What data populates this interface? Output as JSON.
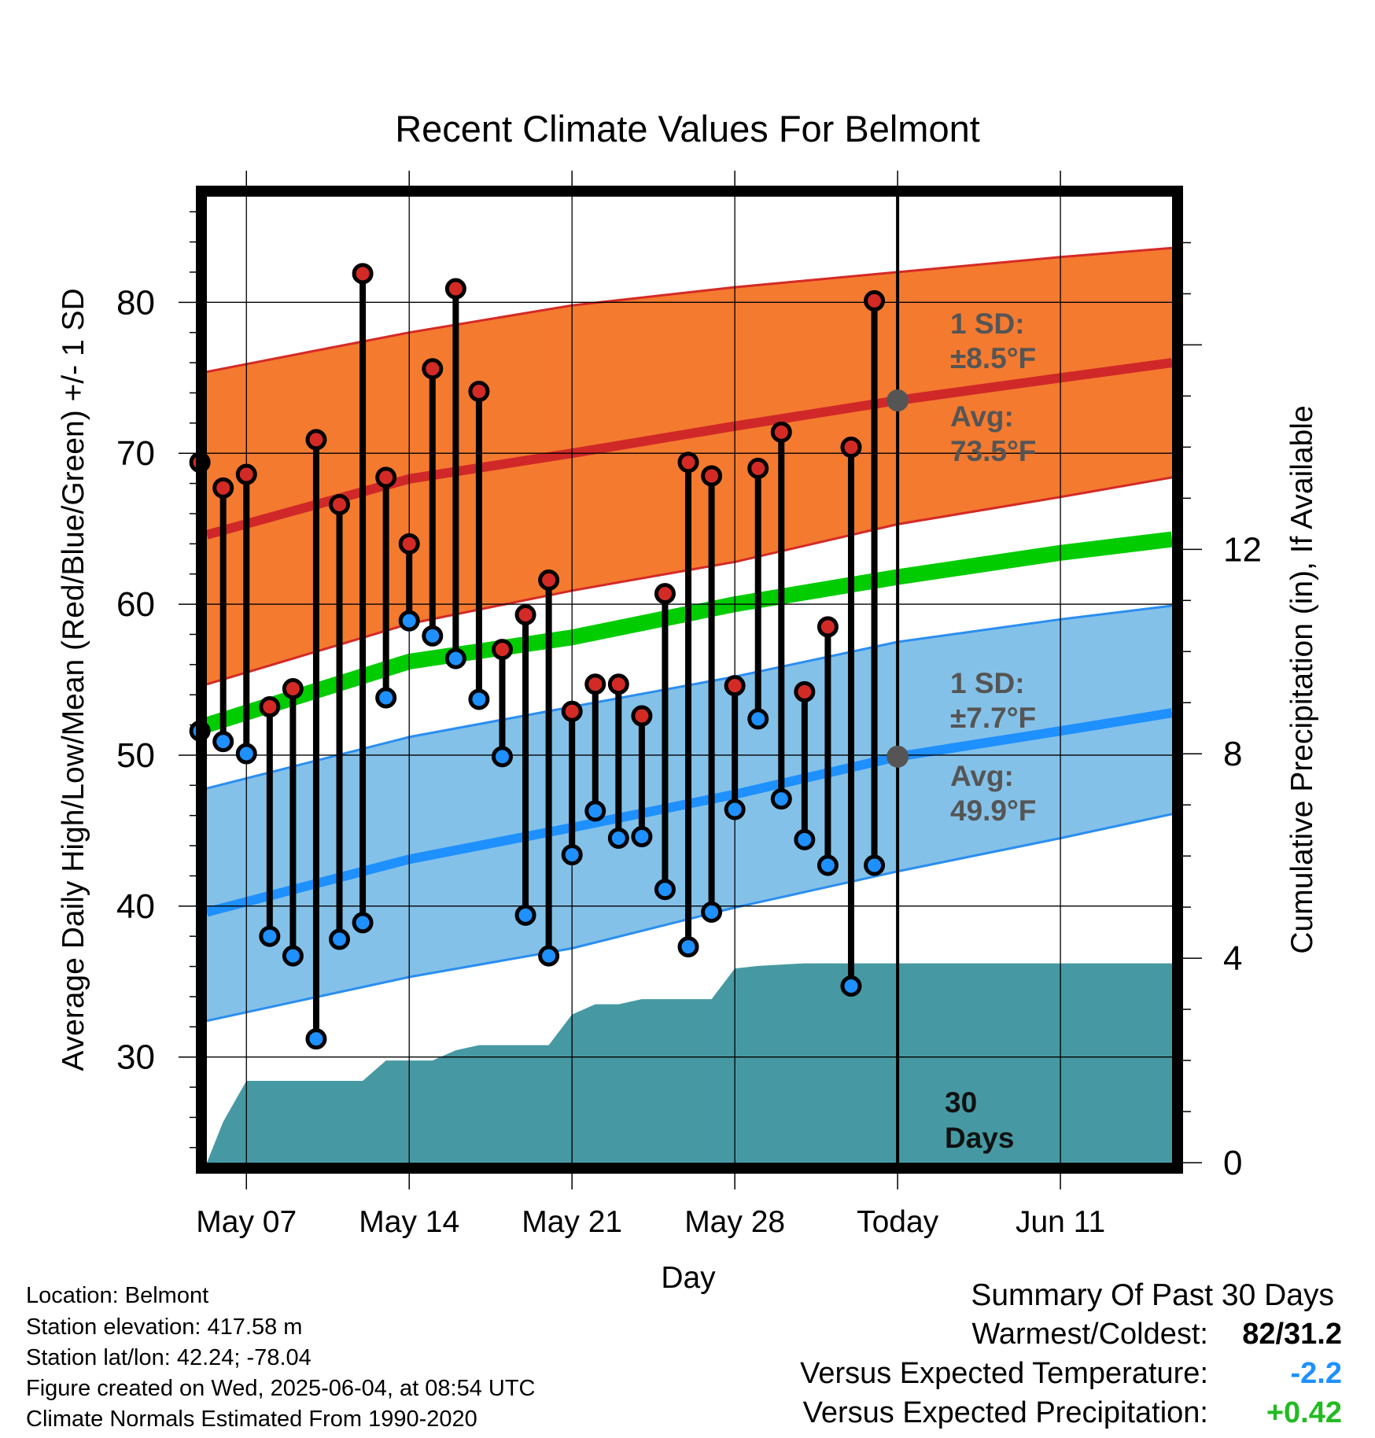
{
  "chart_data": {
    "type": "line",
    "title": "Recent Climate Values For Belmont",
    "xlabel": "Day",
    "ylabel": "Average Daily High/Low/Mean (Red/Blue/Green) +/- 1 SD",
    "y2label": "Cumulative Precipitation (in), If Available",
    "ylim": [
      23,
      87
    ],
    "y2lim": [
      0,
      18.9
    ],
    "yticks": [
      30,
      40,
      50,
      60,
      70,
      80
    ],
    "y2ticks": [
      0,
      4,
      8,
      12
    ],
    "xlim": [
      -1.7,
      39.8
    ],
    "xticks": [
      {
        "day": 0,
        "label": "May 07"
      },
      {
        "day": 7,
        "label": "May 14"
      },
      {
        "day": 14,
        "label": "May 21"
      },
      {
        "day": 21,
        "label": "May 28"
      },
      {
        "day": 28,
        "label": "Today"
      },
      {
        "day": 35,
        "label": "Jun 11"
      }
    ],
    "grid": true,
    "days": [
      -2,
      -1,
      0,
      1,
      2,
      3,
      4,
      5,
      6,
      7,
      8,
      9,
      10,
      11,
      12,
      13,
      14,
      15,
      16,
      17,
      18,
      19,
      20,
      21,
      22,
      23,
      24,
      25,
      26,
      27
    ],
    "highs": [
      69.4,
      67.7,
      68.6,
      53.2,
      54.4,
      70.9,
      66.6,
      81.9,
      68.4,
      64.0,
      75.6,
      80.9,
      74.1,
      57.0,
      59.3,
      61.6,
      52.9,
      54.7,
      54.7,
      52.6,
      60.7,
      69.4,
      68.5,
      54.6,
      69.0,
      71.4,
      54.2,
      58.5,
      70.4,
      80.1
    ],
    "lows": [
      51.6,
      50.9,
      50.1,
      38.0,
      36.7,
      31.2,
      37.8,
      38.9,
      53.8,
      58.9,
      57.9,
      56.4,
      53.7,
      49.9,
      39.4,
      36.7,
      43.4,
      46.3,
      44.5,
      44.6,
      41.1,
      37.3,
      39.6,
      46.4,
      52.4,
      47.1,
      44.4,
      42.7,
      34.7,
      42.7
    ],
    "normals": {
      "days": [
        -1.7,
        7,
        14,
        21,
        28,
        35,
        39.8
      ],
      "high_mean": [
        64.6,
        68.3,
        70.0,
        71.8,
        73.5,
        75.0,
        76.0
      ],
      "high_upper": [
        75.4,
        78.0,
        79.8,
        81.0,
        82.0,
        83.0,
        83.6
      ],
      "high_lower": [
        54.7,
        58.7,
        60.9,
        62.8,
        65.3,
        67.1,
        68.4
      ],
      "mean": [
        52.0,
        56.2,
        57.8,
        60.0,
        61.8,
        63.4,
        64.3
      ],
      "low_mean": [
        39.6,
        43.1,
        45.2,
        47.4,
        49.9,
        51.6,
        52.8
      ],
      "low_upper": [
        47.8,
        51.2,
        53.2,
        55.2,
        57.5,
        59.0,
        59.9
      ],
      "low_lower": [
        32.4,
        35.3,
        37.2,
        39.9,
        42.3,
        44.5,
        46.1
      ]
    },
    "precip": {
      "days": [
        -1.7,
        -1,
        0,
        5,
        6,
        7,
        8,
        9,
        10,
        13,
        14,
        15,
        16,
        17,
        20,
        21,
        22,
        24,
        25,
        26,
        27,
        28,
        39.8
      ],
      "values": [
        0.0,
        0.8,
        1.6,
        1.6,
        2.0,
        2.0,
        2.0,
        2.2,
        2.3,
        2.3,
        2.9,
        3.1,
        3.1,
        3.2,
        3.2,
        3.8,
        3.85,
        3.9,
        3.9,
        3.9,
        3.9,
        3.9,
        3.9
      ]
    },
    "annotations": {
      "high_sd_title": "1 SD:",
      "high_sd_value": "±8.5°F",
      "high_avg_title": "Avg:",
      "high_avg_value": "73.5°F",
      "low_sd_title": "1 SD:",
      "low_sd_value": "±7.7°F",
      "low_avg_title": "Avg:",
      "low_avg_value": "49.9°F",
      "today_high_avg": 73.5,
      "today_low_avg": 49.9,
      "window_line1": "30",
      "window_line2": "Days"
    },
    "colors": {
      "high_band": "#F47A2F",
      "high_band_edge": "#D42A26",
      "high_mean": "#D02828",
      "low_band": "#84C1E8",
      "low_band_edge": "#2A8EF0",
      "low_mean": "#1E90FF",
      "mean": "#00CC00",
      "precip": "#4699A3",
      "high_dot": "#D42A26",
      "low_dot": "#1E90FF",
      "annotation": "#555555"
    }
  },
  "footer": {
    "location": "Location: Belmont",
    "elevation": "Station elevation: 417.58 m",
    "latlon": "Station lat/lon: 42.24; -78.04",
    "created": "Figure created on Wed, 2025-06-04, at 08:54 UTC",
    "normals": "Climate Normals Estimated From 1990-2020"
  },
  "summary": {
    "heading": "Summary Of Past 30 Days",
    "warm_cold_label": "Warmest/Coldest:",
    "warm_cold_value": "82/31.2",
    "temp_label": "Versus Expected Temperature:",
    "temp_value": "-2.2",
    "temp_color": "#1E90FF",
    "precip_label": "Versus Expected Precipitation:",
    "precip_value": "+0.42",
    "precip_color": "#22BB22"
  }
}
